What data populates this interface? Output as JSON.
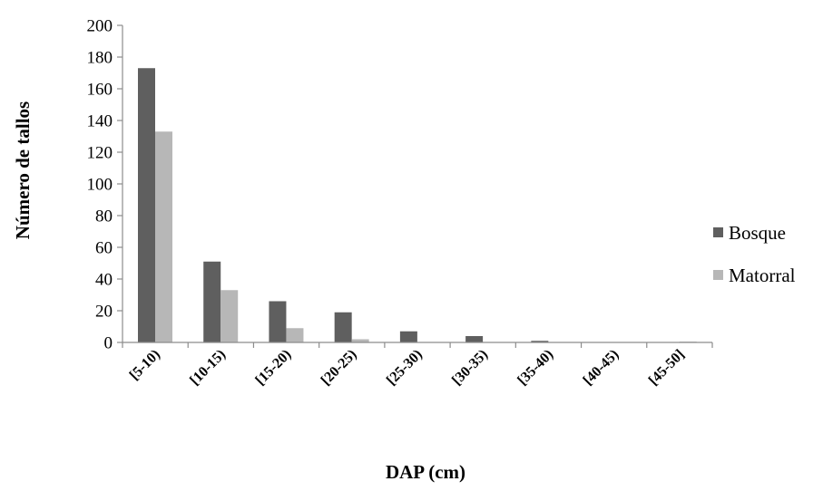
{
  "chart_data": {
    "type": "bar",
    "title": "",
    "xlabel": "DAP (cm)",
    "ylabel": "Número de tallos",
    "ylim": [
      0,
      200
    ],
    "yticks": [
      0,
      20,
      40,
      60,
      80,
      100,
      120,
      140,
      160,
      180,
      200
    ],
    "grid": false,
    "legend_position": "right",
    "categories": [
      "[5-10)",
      "[10-15)",
      "[15-20)",
      "[20-25)",
      "[25-30)",
      "[30-35)",
      "[35-40)",
      "[40-45)",
      "[45-50]"
    ],
    "series": [
      {
        "name": "Bosque",
        "color": "#5f5f5f",
        "values": [
          173,
          51,
          26,
          19,
          7,
          4,
          1,
          0,
          0
        ]
      },
      {
        "name": "Matorral",
        "color": "#b7b7b7",
        "values": [
          133,
          33,
          9,
          2,
          0,
          0,
          0,
          0,
          0.5
        ]
      }
    ]
  }
}
